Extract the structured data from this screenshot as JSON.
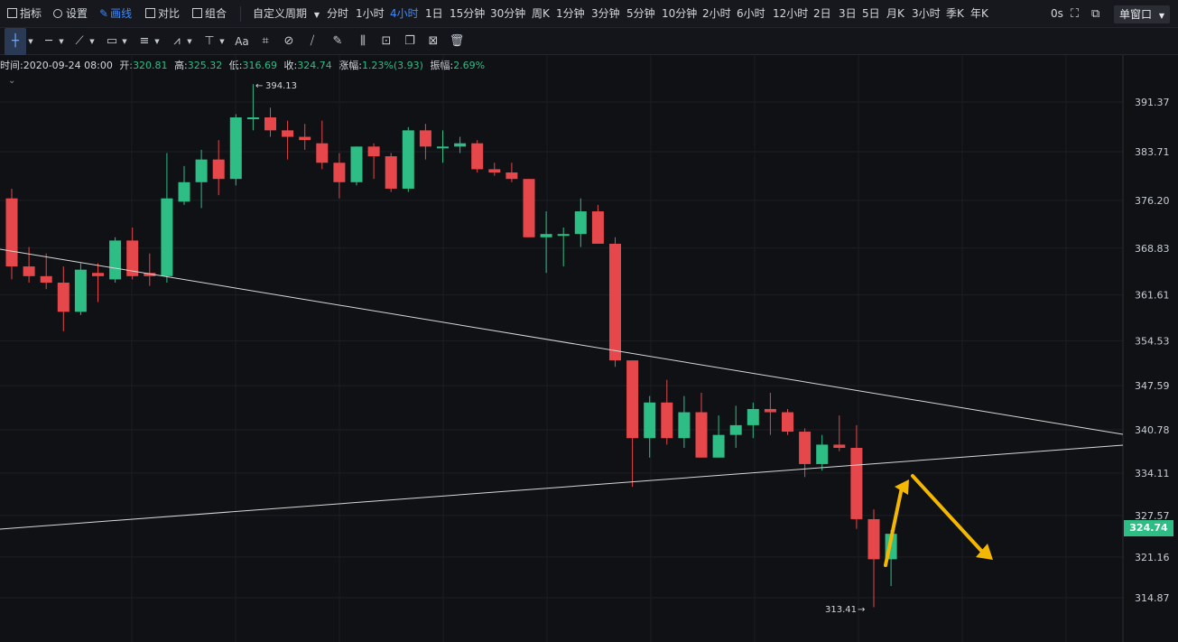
{
  "topbar": {
    "indicator_label": "指标",
    "settings_label": "设置",
    "draw_label": "画线",
    "compare_label": "对比",
    "combo_label": "组合",
    "custom_period_label": "自定义周期",
    "periods": [
      "分时",
      "1小时",
      "4小时",
      "1日",
      "15分钟",
      "30分钟",
      "周K",
      "1分钟",
      "3分钟",
      "5分钟",
      "10分钟",
      "2小时",
      "6小时",
      "12小时",
      "2日",
      "3日",
      "5日",
      "月K",
      "3小时",
      "季K",
      "年K"
    ],
    "active_period": "4小时",
    "countdown": "0s",
    "window_mode": "单窗口"
  },
  "drawing_tools": {
    "text_tool_label": "Aa"
  },
  "info": {
    "time_label": "时间:",
    "time_value": "2020-09-24 08:00",
    "open_label": "开:",
    "open_value": "320.81",
    "high_label": "高:",
    "high_value": "325.32",
    "low_label": "低:",
    "low_value": "316.69",
    "close_label": "收:",
    "close_value": "324.74",
    "change_label": "涨幅:",
    "change_value": "1.23%(3.93)",
    "amplitude_label": "振幅:",
    "amplitude_value": "2.69%"
  },
  "colors": {
    "up": "#2ebd85",
    "down": "#e6474a",
    "background": "#0f1115",
    "arrow": "#f5b800",
    "trendline": "#d8d8d8"
  },
  "chart_data": {
    "type": "candlestick",
    "ylim": [
      310,
      398
    ],
    "y_ticks": [
      "391.37",
      "383.71",
      "376.20",
      "368.83",
      "361.61",
      "354.53",
      "347.59",
      "340.78",
      "334.11",
      "327.57",
      "321.16",
      "314.87"
    ],
    "current_price": "324.74",
    "max_marker": "394.13",
    "min_marker": "313.41",
    "candles": [
      {
        "o": 376.5,
        "h": 378.0,
        "l": 364.0,
        "c": 366.0
      },
      {
        "o": 366.0,
        "h": 369.0,
        "l": 363.5,
        "c": 364.5
      },
      {
        "o": 364.5,
        "h": 368.0,
        "l": 362.5,
        "c": 363.5
      },
      {
        "o": 363.5,
        "h": 366.0,
        "l": 356.0,
        "c": 359.0
      },
      {
        "o": 359.0,
        "h": 366.5,
        "l": 358.5,
        "c": 365.5
      },
      {
        "o": 365.0,
        "h": 366.5,
        "l": 360.5,
        "c": 364.5
      },
      {
        "o": 364.0,
        "h": 370.5,
        "l": 363.5,
        "c": 370.0
      },
      {
        "o": 370.0,
        "h": 372.0,
        "l": 364.0,
        "c": 364.5
      },
      {
        "o": 365.0,
        "h": 368.0,
        "l": 363.0,
        "c": 364.5
      },
      {
        "o": 364.5,
        "h": 383.5,
        "l": 363.5,
        "c": 376.5
      },
      {
        "o": 376.0,
        "h": 381.5,
        "l": 375.5,
        "c": 379.0
      },
      {
        "o": 379.0,
        "h": 384.0,
        "l": 375.0,
        "c": 382.5
      },
      {
        "o": 382.5,
        "h": 385.5,
        "l": 377.0,
        "c": 379.5
      },
      {
        "o": 379.5,
        "h": 389.5,
        "l": 378.5,
        "c": 389.0
      },
      {
        "o": 389.0,
        "h": 394.13,
        "l": 387.0,
        "c": 389.0
      },
      {
        "o": 389.0,
        "h": 390.5,
        "l": 386.0,
        "c": 387.0
      },
      {
        "o": 387.0,
        "h": 388.5,
        "l": 382.5,
        "c": 386.0
      },
      {
        "o": 386.0,
        "h": 388.0,
        "l": 384.0,
        "c": 385.5
      },
      {
        "o": 385.0,
        "h": 388.5,
        "l": 381.0,
        "c": 382.0
      },
      {
        "o": 382.0,
        "h": 383.5,
        "l": 376.5,
        "c": 379.0
      },
      {
        "o": 379.0,
        "h": 384.5,
        "l": 378.5,
        "c": 384.5
      },
      {
        "o": 384.5,
        "h": 385.0,
        "l": 379.5,
        "c": 383.0
      },
      {
        "o": 383.0,
        "h": 383.5,
        "l": 377.5,
        "c": 378.0
      },
      {
        "o": 378.0,
        "h": 387.5,
        "l": 377.5,
        "c": 387.0
      },
      {
        "o": 387.0,
        "h": 388.0,
        "l": 382.5,
        "c": 384.5
      },
      {
        "o": 384.5,
        "h": 387.0,
        "l": 382.0,
        "c": 384.5
      },
      {
        "o": 384.5,
        "h": 386.0,
        "l": 383.5,
        "c": 385.0
      },
      {
        "o": 385.0,
        "h": 385.5,
        "l": 380.5,
        "c": 381.0
      },
      {
        "o": 381.0,
        "h": 382.0,
        "l": 380.0,
        "c": 380.5
      },
      {
        "o": 380.5,
        "h": 382.0,
        "l": 379.0,
        "c": 379.5
      },
      {
        "o": 379.5,
        "h": 379.5,
        "l": 370.5,
        "c": 370.5
      },
      {
        "o": 370.5,
        "h": 374.5,
        "l": 365.0,
        "c": 371.0
      },
      {
        "o": 371.0,
        "h": 372.0,
        "l": 366.0,
        "c": 371.0
      },
      {
        "o": 371.0,
        "h": 376.5,
        "l": 369.0,
        "c": 374.5
      },
      {
        "o": 374.5,
        "h": 375.5,
        "l": 369.5,
        "c": 369.5
      },
      {
        "o": 369.5,
        "h": 370.5,
        "l": 350.5,
        "c": 351.5
      },
      {
        "o": 351.5,
        "h": 351.5,
        "l": 332.0,
        "c": 339.5
      },
      {
        "o": 339.5,
        "h": 346.0,
        "l": 336.5,
        "c": 345.0
      },
      {
        "o": 345.0,
        "h": 348.5,
        "l": 338.5,
        "c": 339.5
      },
      {
        "o": 339.5,
        "h": 346.0,
        "l": 338.0,
        "c": 343.5
      },
      {
        "o": 343.5,
        "h": 346.5,
        "l": 336.5,
        "c": 336.5
      },
      {
        "o": 336.5,
        "h": 343.0,
        "l": 336.5,
        "c": 340.0
      },
      {
        "o": 340.0,
        "h": 344.5,
        "l": 338.0,
        "c": 341.5
      },
      {
        "o": 341.5,
        "h": 345.0,
        "l": 339.5,
        "c": 344.0
      },
      {
        "o": 344.0,
        "h": 346.5,
        "l": 340.0,
        "c": 343.5
      },
      {
        "o": 343.5,
        "h": 344.0,
        "l": 340.0,
        "c": 340.5
      },
      {
        "o": 340.5,
        "h": 341.0,
        "l": 333.5,
        "c": 335.5
      },
      {
        "o": 335.5,
        "h": 340.0,
        "l": 334.5,
        "c": 338.5
      },
      {
        "o": 338.5,
        "h": 343.0,
        "l": 337.5,
        "c": 338.0
      },
      {
        "o": 338.0,
        "h": 341.5,
        "l": 325.5,
        "c": 327.0
      },
      {
        "o": 327.0,
        "h": 328.5,
        "l": 313.41,
        "c": 320.81
      },
      {
        "o": 320.81,
        "h": 325.32,
        "l": 316.69,
        "c": 324.74
      }
    ]
  }
}
